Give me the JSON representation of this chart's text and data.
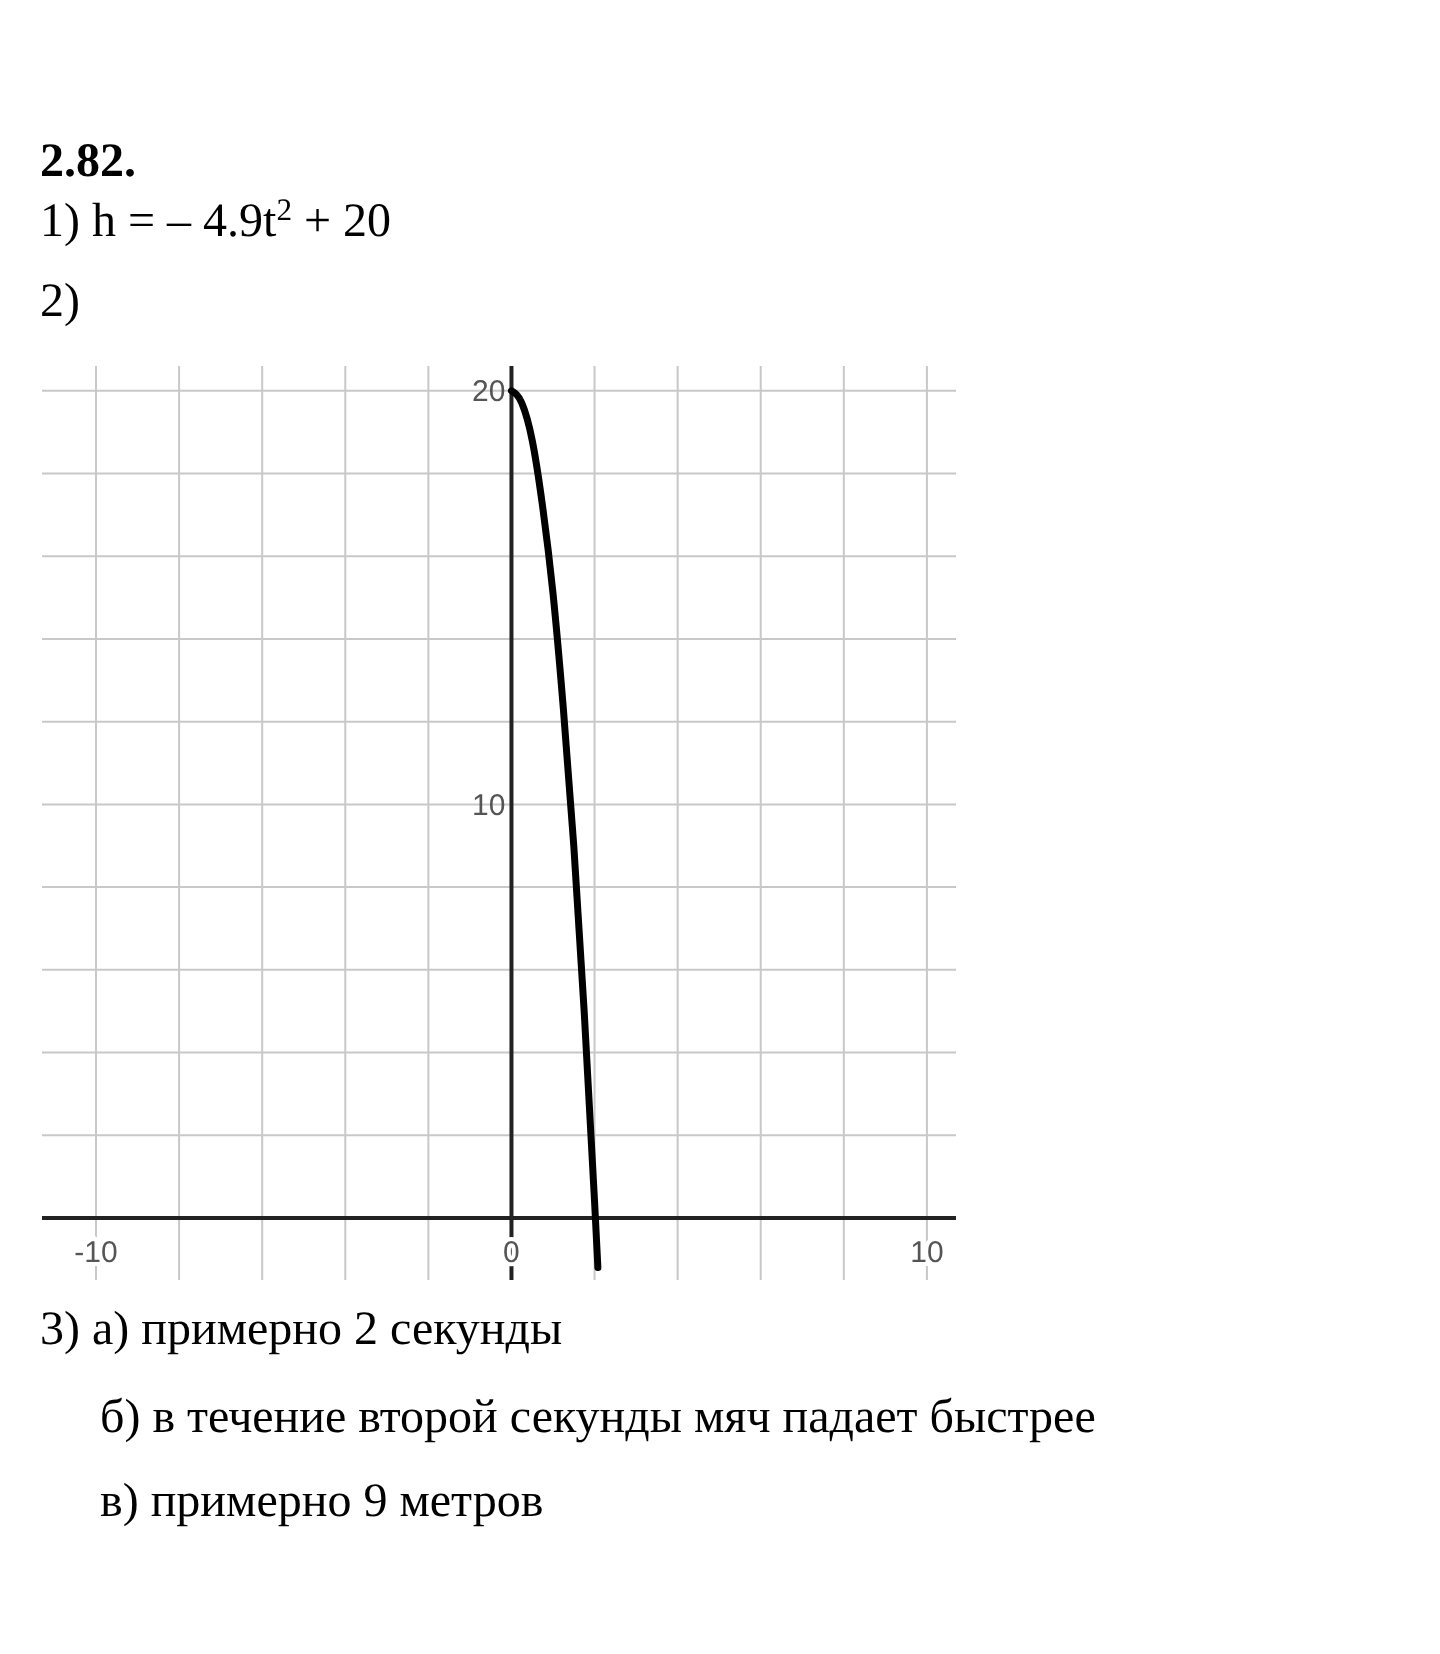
{
  "chart_data": {
    "type": "line",
    "title": "2.82.",
    "annotations": [
      "1) h = – 4.9t$^{2}$ + 20",
      "2)",
      "3) а) примерно 2 секунды",
      "б) в течение второй секунды мяч падает быстрее",
      "в) примерно 9 метров"
    ],
    "series": [
      {
        "color": "#000000",
        "x": [
          0,
          0.25,
          0.5,
          0.75,
          1,
          1.25,
          1.5,
          1.75,
          2,
          2.08
        ],
        "values": [
          20,
          19.7,
          18.8,
          17.2,
          15.1,
          12.3,
          9,
          5,
          0.4,
          -1.2
        ]
      }
    ],
    "xlim": [
      -11.3,
      10.7
    ],
    "ylim": [
      -1.5,
      20.6
    ],
    "xticks": [
      {
        "value": -10,
        "label": "-10"
      },
      {
        "value": -8,
        "label": null
      },
      {
        "value": -6,
        "label": null
      },
      {
        "value": -4,
        "label": null
      },
      {
        "value": -2,
        "label": null
      },
      {
        "value": 0,
        "label": "0"
      },
      {
        "value": 2,
        "label": null
      },
      {
        "value": 4,
        "label": null
      },
      {
        "value": 6,
        "label": null
      },
      {
        "value": 8,
        "label": null
      },
      {
        "value": 10,
        "label": "10"
      }
    ],
    "yticks": [
      {
        "value": 0,
        "label": null
      },
      {
        "value": 2,
        "label": null
      },
      {
        "value": 4,
        "label": null
      },
      {
        "value": 6,
        "label": null
      },
      {
        "value": 8,
        "label": null
      },
      {
        "value": 10,
        "label": "10"
      },
      {
        "value": 12,
        "label": null
      },
      {
        "value": 14,
        "label": null
      },
      {
        "value": 16,
        "label": null
      },
      {
        "value": 18,
        "label": null
      },
      {
        "value": 20,
        "label": "20"
      }
    ],
    "grid": true,
    "marker": "none",
    "line_style": "solid"
  }
}
